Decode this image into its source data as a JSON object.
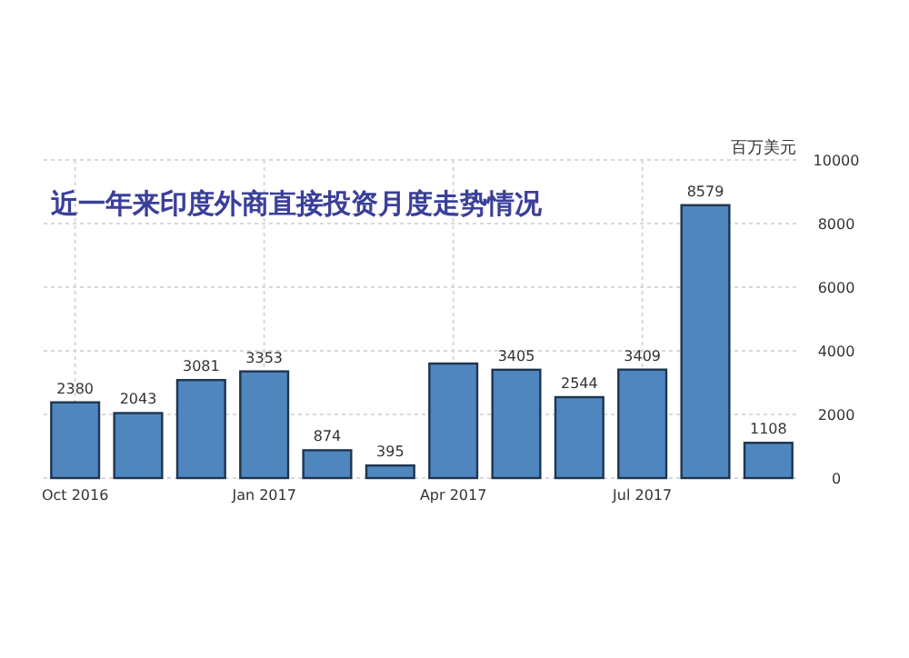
{
  "chart_data": {
    "type": "bar",
    "title": "近一年来印度外商直接投资月度走势情况",
    "ylabel": "百万美元",
    "categories": [
      "Oct 2016",
      null,
      null,
      "Jan 2017",
      null,
      null,
      "Apr 2017",
      null,
      null,
      "Jul 2017",
      null,
      null
    ],
    "values": [
      2380,
      2043,
      3081,
      3353,
      874,
      395,
      3600,
      3405,
      2544,
      3409,
      8579,
      1108
    ],
    "value_labels": [
      "2380",
      "2043",
      "3081",
      "3353",
      "874",
      "395",
      null,
      "3405",
      "2544",
      "3409",
      "8579",
      "1108"
    ],
    "color": "#4f86bd",
    "ylim": [
      0,
      10000
    ],
    "yticks": [
      0,
      2000,
      4000,
      6000,
      8000,
      10000
    ],
    "grid": true
  }
}
